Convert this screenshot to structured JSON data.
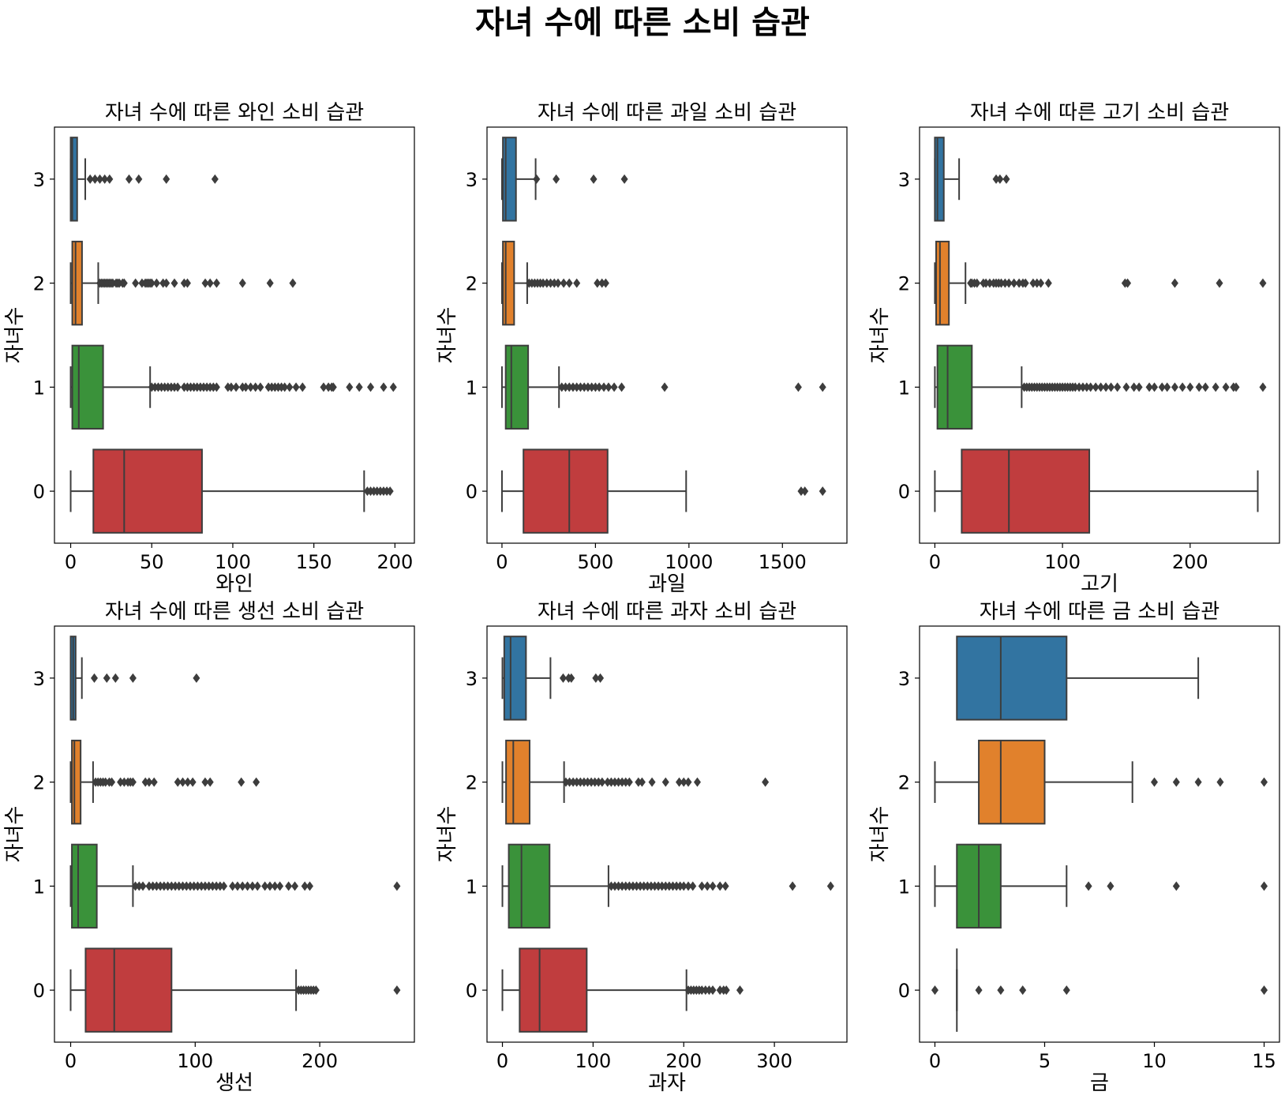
{
  "figure": {
    "title": "자녀 수에 따른 소비 습관"
  },
  "chart_data": [
    {
      "type": "box",
      "orientation": "horizontal",
      "title": "자녀 수에 따른 와인 소비 습관",
      "xlabel": "와인",
      "ylabel": "자녀수",
      "categories": [
        "0",
        "1",
        "2",
        "3"
      ],
      "xlim": [
        -10,
        212
      ],
      "xticks": [
        0,
        50,
        100,
        150,
        200
      ],
      "series": [
        {
          "category": "0",
          "color": "#c03d3e",
          "whislo": 0,
          "q1": 14,
          "median": 33,
          "q3": 81,
          "whishi": 181,
          "fliers": [
            183,
            185,
            187,
            189,
            191,
            193,
            195,
            197
          ]
        },
        {
          "category": "1",
          "color": "#3a923a",
          "whislo": 0,
          "q1": 1,
          "median": 5,
          "q3": 20,
          "whishi": 49,
          "fliers": [
            50,
            52,
            54,
            56,
            58,
            60,
            62,
            64,
            66,
            70,
            72,
            74,
            76,
            78,
            80,
            82,
            84,
            86,
            88,
            90,
            97,
            99,
            102,
            106,
            108,
            111,
            114,
            117,
            122,
            124,
            126,
            128,
            130,
            132,
            135,
            139,
            143,
            156,
            159,
            161,
            162,
            172,
            178,
            185,
            193,
            199
          ]
        },
        {
          "category": "2",
          "color": "#e1812c",
          "whislo": 0,
          "q1": 1,
          "median": 3,
          "q3": 7,
          "whishi": 17,
          "fliers": [
            18,
            19,
            20,
            21,
            22,
            23,
            24,
            25,
            26,
            28,
            29,
            30,
            32,
            33,
            40,
            44,
            46,
            47,
            48,
            49,
            50,
            53,
            57,
            59,
            64,
            70,
            72,
            83,
            86,
            90,
            106,
            123,
            137
          ]
        },
        {
          "category": "3",
          "color": "#3274a1",
          "whislo": 0,
          "q1": 0,
          "median": 1,
          "q3": 4,
          "whishi": 9,
          "fliers": [
            12,
            15,
            18,
            21,
            24,
            36,
            42,
            59,
            89
          ]
        }
      ]
    },
    {
      "type": "box",
      "orientation": "horizontal",
      "title": "자녀 수에 따른 과일 소비 습관",
      "xlabel": "과일",
      "ylabel": "자녀수",
      "categories": [
        "0",
        "1",
        "2",
        "3"
      ],
      "xlim": [
        -80,
        1845
      ],
      "xticks": [
        0,
        500,
        1000,
        1500
      ],
      "series": [
        {
          "category": "0",
          "color": "#c03d3e",
          "whislo": 0,
          "q1": 115,
          "median": 360,
          "q3": 565,
          "whishi": 985,
          "fliers": [
            1600,
            1620,
            1715
          ]
        },
        {
          "category": "1",
          "color": "#3a923a",
          "whislo": 0,
          "q1": 20,
          "median": 50,
          "q3": 140,
          "whishi": 305,
          "fliers": [
            320,
            340,
            360,
            380,
            400,
            420,
            440,
            460,
            480,
            500,
            520,
            545,
            570,
            600,
            640,
            870,
            1585,
            1715
          ]
        },
        {
          "category": "2",
          "color": "#e1812c",
          "whislo": 0,
          "q1": 5,
          "median": 20,
          "q3": 65,
          "whishi": 135,
          "fliers": [
            145,
            160,
            175,
            190,
            205,
            220,
            240,
            260,
            280,
            300,
            330,
            360,
            400,
            510,
            535,
            555
          ]
        },
        {
          "category": "3",
          "color": "#3274a1",
          "whislo": 0,
          "q1": 5,
          "median": 20,
          "q3": 75,
          "whishi": 180,
          "fliers": [
            185,
            290,
            490,
            655
          ]
        }
      ]
    },
    {
      "type": "box",
      "orientation": "horizontal",
      "title": "자녀 수에 따른 고기 소비 습관",
      "xlabel": "고기",
      "ylabel": "자녀수",
      "categories": [
        "0",
        "1",
        "2",
        "3"
      ],
      "xlim": [
        -12,
        270
      ],
      "xticks": [
        0,
        100,
        200
      ],
      "series": [
        {
          "category": "0",
          "color": "#c03d3e",
          "whislo": 0,
          "q1": 21,
          "median": 58,
          "q3": 121,
          "whishi": 253,
          "fliers": []
        },
        {
          "category": "1",
          "color": "#3a923a",
          "whislo": 0,
          "q1": 2,
          "median": 10,
          "q3": 29,
          "whishi": 68,
          "fliers": [
            70,
            72,
            74,
            76,
            78,
            80,
            82,
            84,
            86,
            88,
            90,
            92,
            94,
            96,
            98,
            100,
            102,
            104,
            106,
            108,
            110,
            113,
            116,
            119,
            122,
            126,
            130,
            134,
            138,
            143,
            150,
            156,
            160,
            168,
            172,
            178,
            182,
            188,
            194,
            200,
            207,
            212,
            220,
            228,
            234,
            236,
            257
          ]
        },
        {
          "category": "2",
          "color": "#e1812c",
          "whislo": 0,
          "q1": 1,
          "median": 4,
          "q3": 11,
          "whishi": 24,
          "fliers": [
            28,
            29,
            31,
            33,
            38,
            40,
            43,
            46,
            48,
            50,
            52,
            55,
            58,
            62,
            66,
            69,
            71,
            77,
            80,
            83,
            89,
            149,
            151,
            188,
            223,
            257
          ]
        },
        {
          "category": "3",
          "color": "#3274a1",
          "whislo": 0,
          "q1": 0,
          "median": 2,
          "q3": 7,
          "whishi": 19,
          "fliers": [
            48,
            51,
            56
          ]
        }
      ]
    },
    {
      "type": "box",
      "orientation": "horizontal",
      "title": "자녀 수에 따른 생선 소비 습관",
      "xlabel": "생선",
      "ylabel": "자녀수",
      "categories": [
        "0",
        "1",
        "2",
        "3"
      ],
      "xlim": [
        -13,
        276
      ],
      "xticks": [
        0,
        100,
        200
      ],
      "series": [
        {
          "category": "0",
          "color": "#c03d3e",
          "whislo": 0,
          "q1": 12,
          "median": 35,
          "q3": 81,
          "whishi": 181,
          "fliers": [
            183,
            185,
            187,
            189,
            191,
            193,
            195,
            197,
            262
          ]
        },
        {
          "category": "1",
          "color": "#3a923a",
          "whislo": 0,
          "q1": 1,
          "median": 6,
          "q3": 21,
          "whishi": 50,
          "fliers": [
            52,
            55,
            58,
            63,
            66,
            69,
            72,
            75,
            78,
            81,
            84,
            87,
            90,
            93,
            96,
            99,
            102,
            105,
            108,
            111,
            114,
            117,
            120,
            123,
            130,
            134,
            138,
            142,
            146,
            150,
            156,
            160,
            164,
            168,
            175,
            180,
            188,
            192,
            262
          ]
        },
        {
          "category": "2",
          "color": "#e1812c",
          "whislo": 0,
          "q1": 1,
          "median": 3,
          "q3": 8,
          "whishi": 18,
          "fliers": [
            20,
            22,
            24,
            26,
            28,
            31,
            33,
            40,
            43,
            46,
            48,
            50,
            60,
            63,
            67,
            86,
            90,
            94,
            98,
            108,
            112,
            137,
            149
          ]
        },
        {
          "category": "3",
          "color": "#3274a1",
          "whislo": 0,
          "q1": 0,
          "median": 2,
          "q3": 4,
          "whishi": 9,
          "fliers": [
            19,
            29,
            36,
            50,
            101
          ]
        }
      ]
    },
    {
      "type": "box",
      "orientation": "horizontal",
      "title": "자녀 수에 따른 과자 소비 습관",
      "xlabel": "과자",
      "ylabel": "자녀수",
      "categories": [
        "0",
        "1",
        "2",
        "3"
      ],
      "xlim": [
        -17,
        380
      ],
      "xticks": [
        0,
        100,
        200,
        300
      ],
      "series": [
        {
          "category": "0",
          "color": "#c03d3e",
          "whislo": 0,
          "q1": 19,
          "median": 41,
          "q3": 93,
          "whishi": 203,
          "fliers": [
            205,
            208,
            211,
            214,
            217,
            220,
            224,
            228,
            232,
            240,
            244,
            247,
            262
          ]
        },
        {
          "category": "1",
          "color": "#3a923a",
          "whislo": 0,
          "q1": 7,
          "median": 21,
          "q3": 52,
          "whishi": 117,
          "fliers": [
            120,
            124,
            128,
            132,
            136,
            140,
            144,
            148,
            152,
            156,
            160,
            164,
            168,
            172,
            176,
            180,
            184,
            188,
            192,
            196,
            200,
            205,
            210,
            220,
            226,
            232,
            240,
            246,
            320,
            362
          ]
        },
        {
          "category": "2",
          "color": "#e1812c",
          "whislo": 0,
          "q1": 4,
          "median": 12,
          "q3": 30,
          "whishi": 68,
          "fliers": [
            70,
            74,
            78,
            82,
            86,
            90,
            94,
            98,
            102,
            106,
            110,
            116,
            120,
            124,
            128,
            132,
            136,
            140,
            150,
            154,
            165,
            180,
            195,
            200,
            205,
            215,
            290
          ]
        },
        {
          "category": "3",
          "color": "#3274a1",
          "whislo": 0,
          "q1": 2,
          "median": 9,
          "q3": 26,
          "whishi": 53,
          "fliers": [
            67,
            73,
            76,
            103,
            108
          ]
        }
      ]
    },
    {
      "type": "box",
      "orientation": "horizontal",
      "title": "자녀 수에 따른 금 소비 습관",
      "xlabel": "금",
      "ylabel": "자녀수",
      "categories": [
        "0",
        "1",
        "2",
        "3"
      ],
      "xlim": [
        -0.7,
        15.7
      ],
      "xticks": [
        0,
        5,
        10,
        15
      ],
      "series": [
        {
          "category": "0",
          "color": "#c03d3e",
          "whislo": 1,
          "q1": 1,
          "median": 1,
          "q3": 1,
          "whishi": 1,
          "fliers": [
            0,
            2,
            3,
            4,
            6,
            15
          ]
        },
        {
          "category": "1",
          "color": "#3a923a",
          "whislo": 0,
          "q1": 1,
          "median": 2,
          "q3": 3,
          "whishi": 6,
          "fliers": [
            7,
            8,
            11,
            15
          ]
        },
        {
          "category": "2",
          "color": "#e1812c",
          "whislo": 0,
          "q1": 2,
          "median": 3,
          "q3": 5,
          "whishi": 9,
          "fliers": [
            10,
            11,
            12,
            13,
            15
          ]
        },
        {
          "category": "3",
          "color": "#3274a1",
          "whislo": null,
          "q1": 1,
          "median": 3,
          "q3": 6,
          "whishi": 12,
          "fliers": []
        }
      ]
    }
  ]
}
